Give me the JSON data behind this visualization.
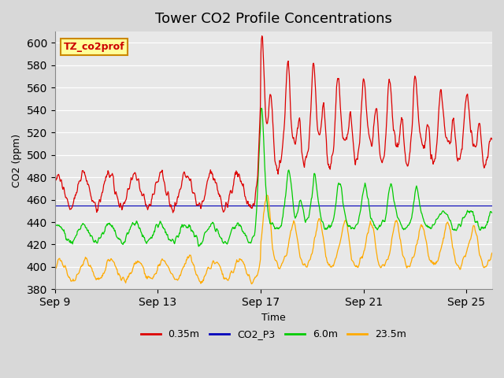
{
  "title": "Tower CO2 Profile Concentrations",
  "xlabel": "Time",
  "ylabel": "CO2 (ppm)",
  "ylim": [
    380,
    610
  ],
  "yticks": [
    380,
    400,
    420,
    440,
    460,
    480,
    500,
    520,
    540,
    560,
    580,
    600
  ],
  "xtick_labels": [
    "Sep 9",
    "Sep 13",
    "Sep 17",
    "Sep 21",
    "Sep 25"
  ],
  "xtick_positions": [
    0,
    4,
    8,
    12,
    16
  ],
  "n_days": 17,
  "pts_per_day": 48,
  "series_names": [
    "0.35m",
    "CO2_P3",
    "6.0m",
    "23.5m"
  ],
  "series_colors": [
    "#dd0000",
    "#0000bb",
    "#00cc00",
    "#ffaa00"
  ],
  "bg_color": "#d8d8d8",
  "plot_bg_color": "#e8e8e8",
  "annotation_text": "TZ_co2prof",
  "annotation_facecolor": "#ffff99",
  "annotation_edgecolor": "#cc8800",
  "grid_color": "#ffffff",
  "title_fontsize": 13,
  "figwidth": 6.4,
  "figheight": 4.8,
  "dpi": 100
}
